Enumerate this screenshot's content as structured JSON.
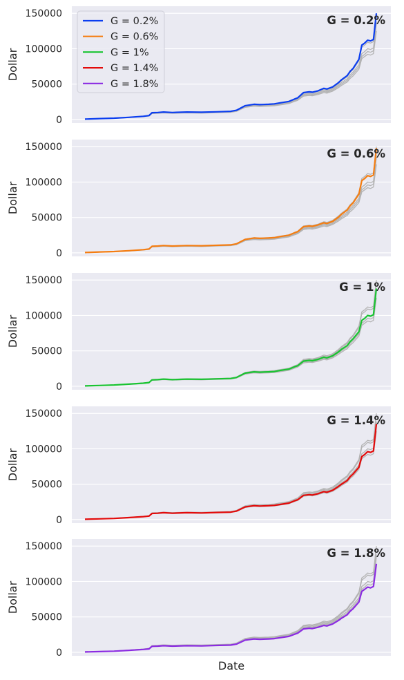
{
  "chart_data": {
    "type": "line",
    "xlabel": "Date",
    "ylabel": "Dollar",
    "ylim": [
      -5000,
      160000
    ],
    "yticks": [
      0,
      50000,
      100000,
      150000
    ],
    "ytick_labels": [
      "0",
      "50000",
      "100000",
      "150000"
    ],
    "grid": true,
    "legend_position": "top-left",
    "x": [
      0,
      5,
      10,
      15,
      20,
      22,
      23,
      25,
      27,
      30,
      35,
      40,
      45,
      50,
      52,
      55,
      58,
      60,
      63,
      65,
      67,
      70,
      72,
      73,
      75,
      77,
      78,
      80,
      82,
      83,
      85,
      87,
      88,
      90,
      91,
      92,
      94,
      95,
      96,
      97,
      98,
      99,
      100
    ],
    "series": [
      {
        "name": "G = 0.2%",
        "color": "#0b3ef0",
        "values": [
          500,
          1200,
          1800,
          3000,
          4500,
          5500,
          9500,
          9800,
          10500,
          9800,
          10500,
          10200,
          10800,
          11500,
          13000,
          19500,
          21500,
          21000,
          21500,
          22000,
          23500,
          25500,
          29000,
          30500,
          38000,
          39000,
          38500,
          40500,
          44000,
          43000,
          46000,
          52000,
          56000,
          62000,
          68000,
          72000,
          85000,
          105000,
          108000,
          112000,
          111000,
          113000,
          150000
        ]
      },
      {
        "name": "G = 0.6%",
        "color": "#f57d11",
        "values": [
          500,
          1200,
          1800,
          3000,
          4500,
          5400,
          9300,
          9600,
          10300,
          9600,
          10300,
          10000,
          10600,
          11200,
          12800,
          19000,
          21000,
          20500,
          21000,
          21500,
          23000,
          25000,
          28500,
          30000,
          37000,
          38000,
          37500,
          39500,
          42500,
          41500,
          44500,
          50500,
          54500,
          60500,
          66500,
          70500,
          83000,
          102000,
          105000,
          109000,
          108000,
          110000,
          148000
        ]
      },
      {
        "name": "G = 1%",
        "color": "#19c431",
        "values": [
          500,
          1100,
          1700,
          2900,
          4300,
          5200,
          9000,
          9300,
          10000,
          9300,
          10000,
          9700,
          10300,
          10900,
          12400,
          18500,
          20300,
          19800,
          20300,
          20800,
          22200,
          24200,
          27600,
          29000,
          35500,
          36500,
          36000,
          38000,
          41000,
          40000,
          43000,
          48500,
          52000,
          57500,
          63000,
          67000,
          77000,
          93000,
          96000,
          100000,
          99000,
          101000,
          138000
        ]
      },
      {
        "name": "G = 1.4%",
        "color": "#e30a0a",
        "values": [
          500,
          1100,
          1600,
          2800,
          4200,
          5000,
          8700,
          9000,
          9700,
          9000,
          9700,
          9400,
          10000,
          10500,
          12000,
          17900,
          19600,
          19100,
          19600,
          20100,
          21400,
          23300,
          26600,
          28000,
          34200,
          35200,
          34700,
          36600,
          39500,
          38600,
          41500,
          46800,
          50000,
          55200,
          60500,
          64300,
          74000,
          89000,
          92000,
          96000,
          95000,
          97000,
          135000
        ]
      },
      {
        "name": "G = 1.8%",
        "color": "#8b2be2",
        "values": [
          500,
          1000,
          1500,
          2700,
          4000,
          4800,
          8400,
          8700,
          9300,
          8700,
          9300,
          9000,
          9600,
          10100,
          11500,
          17200,
          18800,
          18300,
          18800,
          19300,
          20600,
          22400,
          25600,
          27000,
          33000,
          34000,
          33500,
          35300,
          38000,
          37200,
          40000,
          45000,
          48000,
          53000,
          58000,
          61500,
          71000,
          86000,
          89000,
          92000,
          91000,
          93000,
          125000
        ]
      }
    ]
  }
}
